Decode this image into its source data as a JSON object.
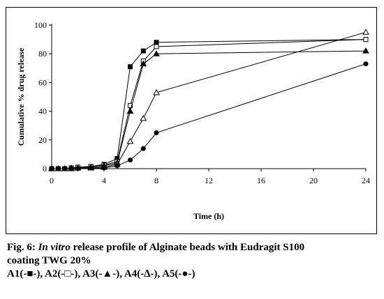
{
  "chart_data": {
    "type": "line",
    "xlabel": "Time (h)",
    "ylabel": "Cumulative % drug release",
    "xlim": [
      0,
      24
    ],
    "ylim": [
      0,
      100
    ],
    "x_ticks": [
      "0",
      "4",
      "8",
      "12",
      "16",
      "20",
      "24"
    ],
    "y_ticks": [
      "0",
      "20",
      "40",
      "60",
      "80",
      "100"
    ],
    "grid": false,
    "x": [
      0,
      0.5,
      1,
      1.5,
      2,
      3,
      4,
      5,
      6,
      7,
      8,
      24
    ],
    "series": [
      {
        "name": "A1",
        "marker": "filled-square",
        "values": [
          0,
          0,
          0,
          0.5,
          1,
          1.5,
          3,
          7,
          71,
          82,
          88,
          90
        ]
      },
      {
        "name": "A2",
        "marker": "open-square",
        "values": [
          0,
          0,
          0,
          0.5,
          1,
          1.5,
          2.5,
          5,
          44,
          75,
          85,
          90
        ]
      },
      {
        "name": "A3",
        "marker": "filled-triangle",
        "values": [
          0,
          0,
          0,
          0.5,
          0.5,
          1,
          2,
          4,
          40,
          73,
          80,
          82
        ]
      },
      {
        "name": "A4",
        "marker": "open-triangle",
        "values": [
          0,
          0,
          0,
          0,
          0.5,
          0.5,
          1,
          3,
          19,
          35,
          53,
          95
        ]
      },
      {
        "name": "A5",
        "marker": "filled-circle",
        "values": [
          0,
          0,
          0,
          0,
          0,
          0.5,
          0.5,
          2,
          6,
          14,
          25,
          73
        ]
      }
    ]
  },
  "caption": {
    "fig_label": "Fig. 6: ",
    "fig_italic": "In vitro",
    "fig_rest": " release profile of Alginate beads with Eudragit S100",
    "line2": "coating TWG 20%",
    "line3": "A1(-■-), A2(-□-), A3(-▲-), A4(-∆-), A5(-●-)"
  }
}
